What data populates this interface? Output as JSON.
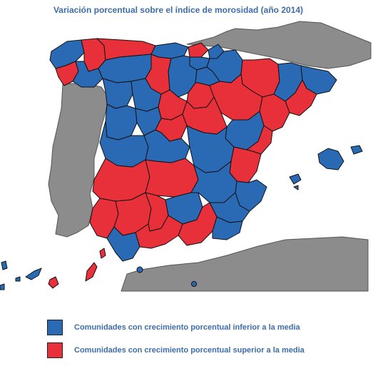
{
  "title": "Variación porcentual sobre el índice de morosidad (año 2014)",
  "colors": {
    "below": "#2a6ab5",
    "above": "#e8303a",
    "other_land": "#8c8c8c",
    "border": "#111111",
    "text": "#3d6ea8"
  },
  "legend": [
    {
      "key": "below",
      "label": "Comunidades con crecimiento porcentual inferior a la media"
    },
    {
      "key": "above",
      "label": "Comunidades con crecimiento porcentual superior a la media"
    }
  ]
}
